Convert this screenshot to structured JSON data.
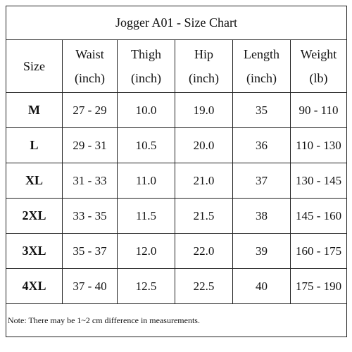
{
  "title": "Jogger A01 - Size Chart",
  "table": {
    "headers": [
      {
        "name": "Size"
      },
      {
        "name": "Waist",
        "unit": "(inch)"
      },
      {
        "name": "Thigh",
        "unit": "(inch)"
      },
      {
        "name": "Hip",
        "unit": "(inch)"
      },
      {
        "name": "Length",
        "unit": "(inch)"
      },
      {
        "name": "Weight",
        "unit": "(lb)"
      }
    ],
    "rows": [
      [
        "M",
        "27 - 29",
        "10.0",
        "19.0",
        "35",
        "90 - 110"
      ],
      [
        "L",
        "29 - 31",
        "10.5",
        "20.0",
        "36",
        "110 - 130"
      ],
      [
        "XL",
        "31 - 33",
        "11.0",
        "21.0",
        "37",
        "130 - 145"
      ],
      [
        "2XL",
        "33 - 35",
        "11.5",
        "21.5",
        "38",
        "145 - 160"
      ],
      [
        "3XL",
        "35 - 37",
        "12.0",
        "22.0",
        "39",
        "160 - 175"
      ],
      [
        "4XL",
        "37 - 40",
        "12.5",
        "22.5",
        "40",
        "175 - 190"
      ]
    ]
  },
  "note": "Note: There may be 1~2 cm difference in measurements."
}
